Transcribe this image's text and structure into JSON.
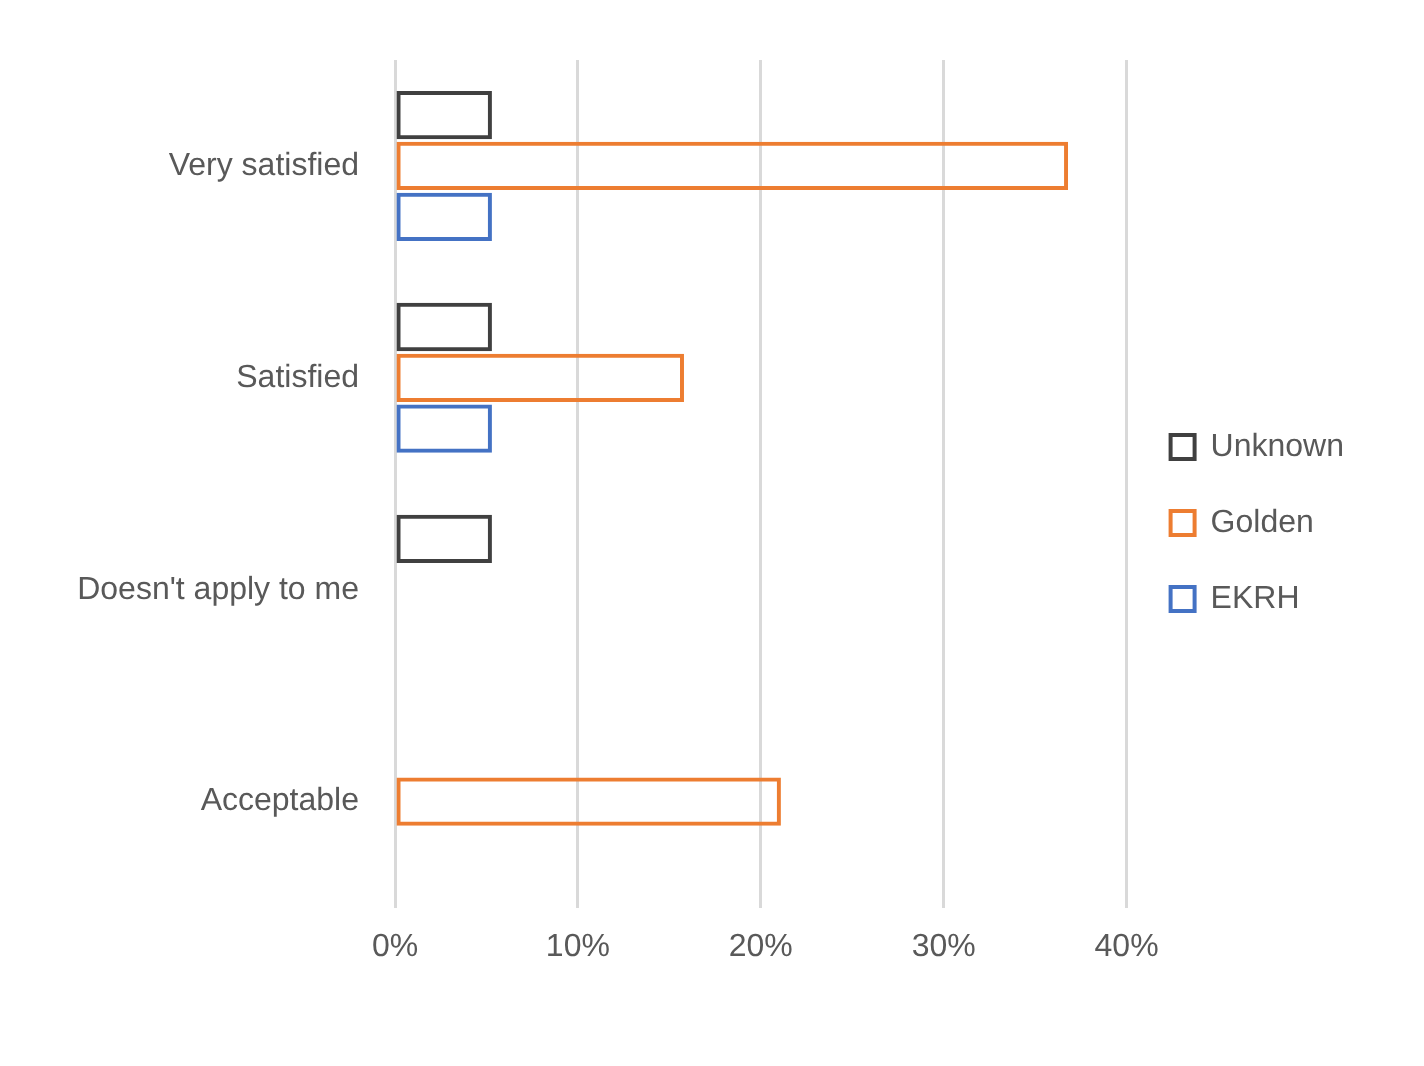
{
  "chart_data": {
    "type": "bar",
    "orientation": "horizontal",
    "categories": [
      "Very satisfied",
      "Satisfied",
      "Doesn't apply to me",
      "Acceptable"
    ],
    "series": [
      {
        "name": "Unknown",
        "color": "#404040",
        "values": [
          5.3,
          5.3,
          5.3,
          null
        ]
      },
      {
        "name": "Golden",
        "color": "#ed7d31",
        "values": [
          36.8,
          15.8,
          null,
          21.1
        ]
      },
      {
        "name": "EKRH",
        "color": "#4472c4",
        "values": [
          5.3,
          5.3,
          null,
          null
        ]
      }
    ],
    "xlim": [
      0,
      40
    ],
    "xticks": [
      {
        "value": 0,
        "label": "0%"
      },
      {
        "value": 10,
        "label": "10%"
      },
      {
        "value": 20,
        "label": "20%"
      },
      {
        "value": 30,
        "label": "30%"
      },
      {
        "value": 40,
        "label": "40%"
      }
    ],
    "grid": "x",
    "legend": "right"
  }
}
